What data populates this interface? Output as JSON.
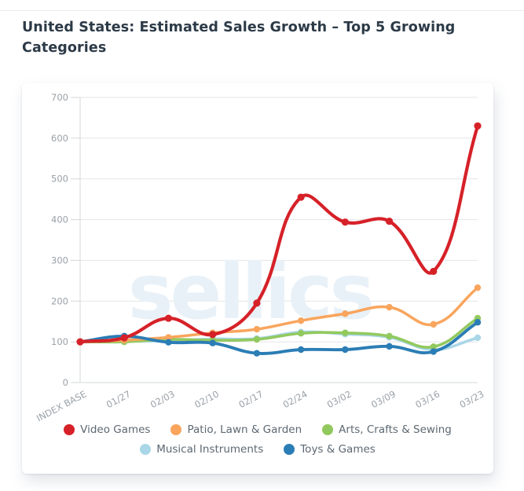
{
  "page": {
    "title": "United States: Estimated Sales Growth – Top 5 Growing Categories"
  },
  "chart_data": {
    "type": "line",
    "title": "United States: Estimated Sales Growth – Top 5 Growing Categories",
    "categories": [
      "INDEX BASE",
      "01/27",
      "02/03",
      "02/10",
      "02/17",
      "02/24",
      "03/02",
      "03/09",
      "03/16",
      "03/23"
    ],
    "series": [
      {
        "name": "Video Games",
        "color": "#d62128",
        "values": [
          100,
          110,
          158,
          118,
          195,
          455,
          394,
          396,
          273,
          630
        ]
      },
      {
        "name": "Patio, Lawn & Garden",
        "color": "#f9a55d",
        "values": [
          100,
          104,
          111,
          122,
          131,
          152,
          169,
          185,
          143,
          233
        ]
      },
      {
        "name": "Arts, Crafts & Sewing",
        "color": "#92c95e",
        "values": [
          100,
          100,
          106,
          104,
          106,
          121,
          122,
          114,
          88,
          158
        ]
      },
      {
        "name": "Musical Instruments",
        "color": "#a9d7e8",
        "values": [
          100,
          101,
          103,
          107,
          108,
          124,
          119,
          111,
          81,
          110
        ]
      },
      {
        "name": "Toys & Games",
        "color": "#2b7db5",
        "values": [
          100,
          114,
          99,
          97,
          72,
          81,
          81,
          89,
          76,
          148
        ]
      }
    ],
    "xlabel": "",
    "ylabel": "",
    "ylim": [
      0,
      700
    ],
    "yticks": [
      0,
      100,
      200,
      300,
      400,
      500,
      600,
      700
    ],
    "grid": true,
    "legend_position": "bottom",
    "legend_rows": [
      [
        "Video Games",
        "Patio, Lawn & Garden",
        "Arts, Crafts & Sewing"
      ],
      [
        "Musical Instruments",
        "Toys & Games"
      ]
    ],
    "watermark": "sellics",
    "axis_text_color": "#9aa1a8",
    "grid_color": "#e4e5e7",
    "axis_line_color": "#d6d8da",
    "watermark_color": "#e9f1f8"
  }
}
